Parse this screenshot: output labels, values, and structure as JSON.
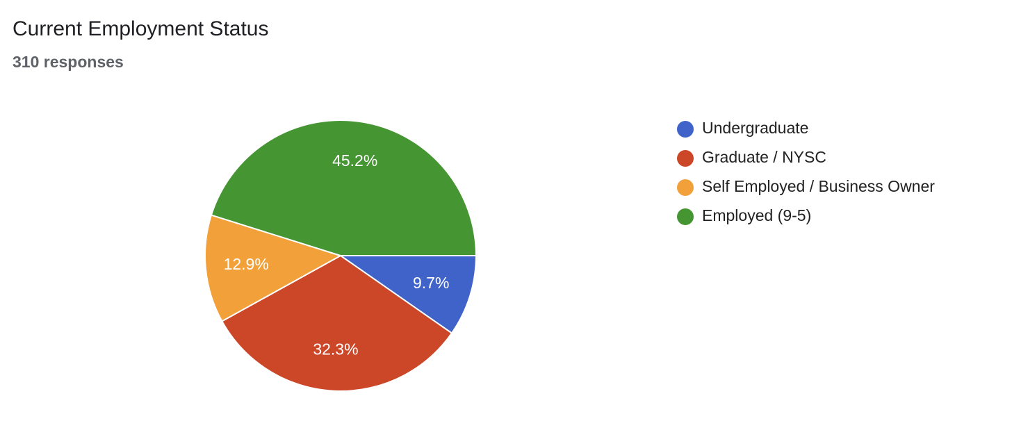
{
  "chart_data": {
    "type": "pie",
    "title": "Current Employment Status",
    "subtitle": "310 responses",
    "categories": [
      "Undergraduate",
      "Graduate / NYSC",
      "Self Employed / Business Owner",
      "Employed (9-5)"
    ],
    "values": [
      9.7,
      32.3,
      12.9,
      45.2
    ],
    "value_labels": [
      "9.7%",
      "32.3%",
      "12.9%",
      "45.2%"
    ],
    "colors": [
      "#3f63c8",
      "#cc4628",
      "#f2a03a",
      "#459632"
    ],
    "legend": "right"
  }
}
